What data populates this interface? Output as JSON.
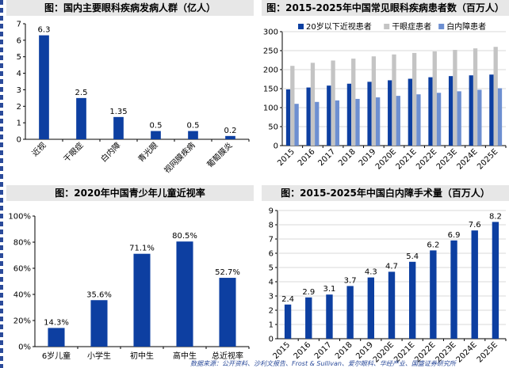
{
  "chart_data": [
    {
      "type": "bar",
      "title": "图：国内主要眼科疾病发病人群（亿人）",
      "categories": [
        "近视",
        "干眼症",
        "白内障",
        "青光眼",
        "视网膜疾病",
        "葡萄膜炎"
      ],
      "values": [
        6.3,
        2.5,
        1.35,
        0.5,
        0.5,
        0.2
      ],
      "data_labels": [
        "6.3",
        "2.5",
        "1.35",
        "0.5",
        "0.5",
        "0.2"
      ],
      "yticks": [
        "0",
        "1",
        "2",
        "3",
        "4",
        "5",
        "6",
        "7"
      ],
      "ylim": [
        0,
        7
      ],
      "grid": false,
      "colors": [
        "#0d3fa1"
      ]
    },
    {
      "type": "bar",
      "title": "图：2015-2025年中国常见眼科疾病患者数（百万人）",
      "categories": [
        "2015",
        "2016",
        "2017",
        "2018",
        "2019",
        "2020E",
        "2021E",
        "2022E",
        "2023E",
        "2024E",
        "2025E"
      ],
      "series": [
        {
          "name": "20岁以下近视患者",
          "values": [
            148,
            153,
            158,
            163,
            168,
            172,
            176,
            180,
            183,
            185,
            187
          ]
        },
        {
          "name": "干眼症患者",
          "values": [
            210,
            218,
            224,
            229,
            235,
            240,
            244,
            248,
            252,
            256,
            260
          ]
        },
        {
          "name": "白内障患者",
          "values": [
            110,
            115,
            119,
            123,
            127,
            131,
            135,
            139,
            143,
            147,
            151
          ]
        }
      ],
      "yticks": [
        "0",
        "50",
        "100",
        "150",
        "200",
        "250",
        "300"
      ],
      "ylim": [
        0,
        300
      ],
      "legend": "top",
      "grid": true,
      "colors": [
        "#0d3fa1",
        "#c4c4c4",
        "#6d8fd1"
      ]
    },
    {
      "type": "bar",
      "title": "图：2020年中国青少年儿童近视率",
      "categories": [
        "6岁儿童",
        "小学生",
        "初中生",
        "高中生",
        "总近视率"
      ],
      "values": [
        14.3,
        35.6,
        71.1,
        80.5,
        52.7
      ],
      "data_labels": [
        "14.3%",
        "35.6%",
        "71.1%",
        "80.5%",
        "52.7%"
      ],
      "yticks": [
        "0%",
        "20%",
        "40%",
        "60%",
        "80%",
        "100%"
      ],
      "ylim": [
        0,
        100
      ],
      "grid": false,
      "colors": [
        "#0d3fa1"
      ]
    },
    {
      "type": "bar",
      "title": "图：2015-2025年中国白内障手术量（百万人）",
      "categories": [
        "2015",
        "2016",
        "2017",
        "2018",
        "2019",
        "2020E",
        "2021E",
        "2022E",
        "2023E",
        "2024E",
        "2025E"
      ],
      "values": [
        2.4,
        2.9,
        3.1,
        3.7,
        4.3,
        4.7,
        5.4,
        6.2,
        6.9,
        7.6,
        8.2
      ],
      "data_labels": [
        "2.4",
        "2.9",
        "3.1",
        "3.7",
        "4.3",
        "4.7",
        "5.4",
        "6.2",
        "6.9",
        "7.6",
        "8.2"
      ],
      "yticks": [
        "0",
        "1",
        "2",
        "3",
        "4",
        "5",
        "6",
        "7",
        "8",
        "9"
      ],
      "ylim": [
        0,
        9
      ],
      "grid": true,
      "colors": [
        "#0d3fa1"
      ]
    }
  ],
  "footer": {
    "source": "数据来源：公开资料、沙利文报告、Frost & Sullivan、爱尔眼科、华经产业、国盛证券研究所"
  }
}
